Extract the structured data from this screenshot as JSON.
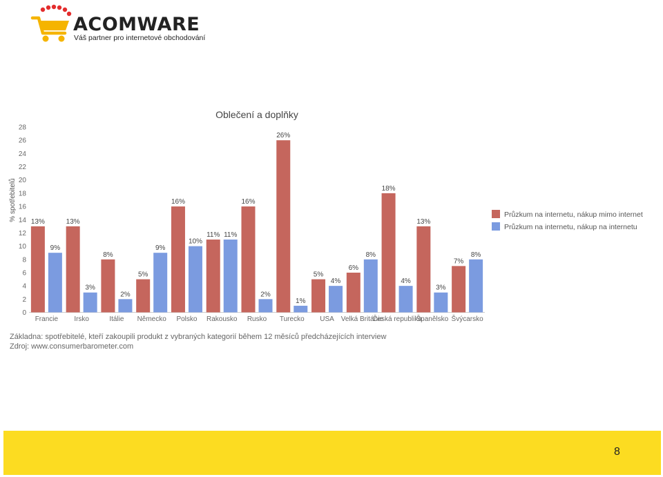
{
  "logo": {
    "brand": "ACOMWARE",
    "tagline": "Váš partner pro internetové obchodování",
    "icon": "shopping-cart-icon",
    "colors": {
      "cart": "#f5b400",
      "dots": "#e32d2d"
    }
  },
  "chart_data": {
    "type": "bar",
    "title": "Oblečení a doplňky",
    "ylabel": "% spotřebitelů",
    "xlabel": "",
    "ylim": [
      0,
      28
    ],
    "yticks": [
      0,
      2,
      4,
      6,
      8,
      10,
      12,
      14,
      16,
      18,
      20,
      22,
      24,
      26,
      28
    ],
    "grid": false,
    "legend_position": "right",
    "categories": [
      "Francie",
      "Irsko",
      "Itálie",
      "Německo",
      "Polsko",
      "Rakousko",
      "Rusko",
      "Turecko",
      "USA",
      "Velká Británie",
      "Česká republika",
      "Španělsko",
      "Švýcarsko"
    ],
    "series": [
      {
        "name": "Průzkum na internetu, nákup mimo internet",
        "color": "#c5665d",
        "values": [
          13,
          13,
          8,
          5,
          16,
          11,
          16,
          26,
          5,
          6,
          18,
          13,
          7
        ],
        "labels": [
          "13%",
          "13%",
          "8%",
          "5%",
          "16%",
          "11%",
          "16%",
          "26%",
          "5%",
          "6%",
          "18%",
          "13%",
          "7%"
        ]
      },
      {
        "name": "Průzkum na internetu, nákup na internetu",
        "color": "#7b9be0",
        "values": [
          9,
          3,
          2,
          9,
          10,
          11,
          2,
          1,
          4,
          8,
          4,
          3,
          8
        ],
        "labels": [
          "9%",
          "3%",
          "2%",
          "9%",
          "10%",
          "11%",
          "2%",
          "1%",
          "4%",
          "8%",
          "4%",
          "3%",
          "8%"
        ]
      }
    ]
  },
  "notes": {
    "basis": "Základna: spotřebitelé, kteří zakoupili produkt z vybraných kategorií během 12 měsíců předcházejících interview",
    "source": "Zdroj: www.consumerbarometer.com"
  },
  "footer": {
    "page_number": "8",
    "band_color": "#fcdc21"
  }
}
